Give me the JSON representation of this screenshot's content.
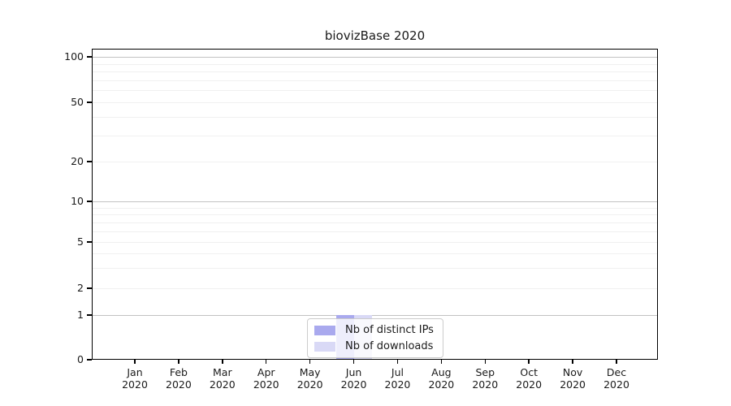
{
  "chart_data": {
    "type": "bar",
    "title": "biovizBase 2020",
    "categories": [
      "Jan",
      "Feb",
      "Mar",
      "Apr",
      "May",
      "Jun",
      "Jul",
      "Aug",
      "Sep",
      "Oct",
      "Nov",
      "Dec"
    ],
    "category_year": "2020",
    "series": [
      {
        "name": "Nb of distinct IPs",
        "color": "#a9a9ee",
        "values": [
          0,
          0,
          0,
          0,
          0,
          1,
          0,
          0,
          0,
          0,
          0,
          0
        ]
      },
      {
        "name": "Nb of downloads",
        "color": "#d9d9f6",
        "values": [
          0,
          0,
          0,
          0,
          0,
          1,
          0,
          0,
          0,
          0,
          0,
          0
        ]
      }
    ],
    "yscale": "symlog",
    "ylim": [
      0,
      100
    ],
    "grid": true,
    "legend_position": "bottom-center",
    "y_ticks": [
      {
        "value": 100,
        "y": 70
      },
      {
        "value": 50,
        "y": 126
      },
      {
        "value": 20,
        "y": 199
      },
      {
        "value": 10,
        "y": 248
      },
      {
        "value": 5,
        "y": 298
      },
      {
        "value": 2,
        "y": 355
      },
      {
        "value": 1,
        "y": 388
      },
      {
        "value": 0,
        "y": 443
      }
    ],
    "y_minor": [
      {
        "value": 90,
        "y": 79
      },
      {
        "value": 80,
        "y": 88
      },
      {
        "value": 70,
        "y": 99
      },
      {
        "value": 60,
        "y": 111
      },
      {
        "value": 40,
        "y": 144
      },
      {
        "value": 30,
        "y": 167
      },
      {
        "value": 9,
        "y": 256
      },
      {
        "value": 8,
        "y": 264
      },
      {
        "value": 7,
        "y": 274
      },
      {
        "value": 6,
        "y": 285
      },
      {
        "value": 4,
        "y": 312
      },
      {
        "value": 3,
        "y": 330
      }
    ],
    "major_grid_values": [
      1,
      10,
      100
    ],
    "colors": {
      "major_grid": "#c2c2c2",
      "minor_grid": "#f0f0f0",
      "spine": "#000000",
      "text": "#1a1a1a",
      "legend_border": "#cccccc"
    }
  }
}
